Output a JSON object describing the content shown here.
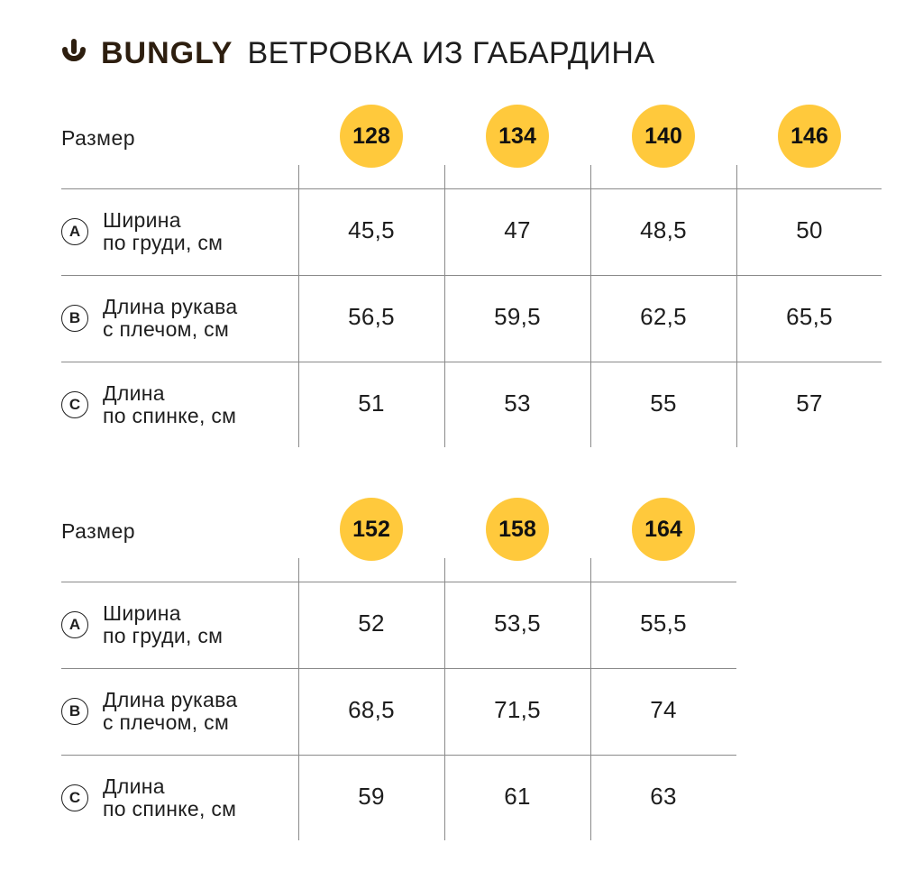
{
  "header": {
    "brand": "BUNGLY",
    "product_title": "ВЕТРОВКА ИЗ ГАБАРДИНА",
    "logo_icon": "bungly-logo-icon",
    "brand_color": "#2d1e0f"
  },
  "accent_color": "#ffc93c",
  "tables": [
    {
      "size_label": "Размер",
      "sizes": [
        "128",
        "134",
        "140",
        "146"
      ],
      "rows": [
        {
          "letter": "A",
          "label_line1": "Ширина",
          "label_line2": "по груди, см",
          "values": [
            "45,5",
            "47",
            "48,5",
            "50"
          ]
        },
        {
          "letter": "B",
          "label_line1": "Длина рукава",
          "label_line2": "с плечом, см",
          "values": [
            "56,5",
            "59,5",
            "62,5",
            "65,5"
          ]
        },
        {
          "letter": "C",
          "label_line1": "Длина",
          "label_line2": "по спинке, см",
          "values": [
            "51",
            "53",
            "55",
            "57"
          ]
        }
      ]
    },
    {
      "size_label": "Размер",
      "sizes": [
        "152",
        "158",
        "164"
      ],
      "rows": [
        {
          "letter": "A",
          "label_line1": "Ширина",
          "label_line2": "по груди, см",
          "values": [
            "52",
            "53,5",
            "55,5"
          ]
        },
        {
          "letter": "B",
          "label_line1": "Длина рукава",
          "label_line2": "с плечом, см",
          "values": [
            "68,5",
            "71,5",
            "74"
          ]
        },
        {
          "letter": "C",
          "label_line1": "Длина",
          "label_line2": "по спинке, см",
          "values": [
            "59",
            "61",
            "63"
          ]
        }
      ]
    }
  ]
}
